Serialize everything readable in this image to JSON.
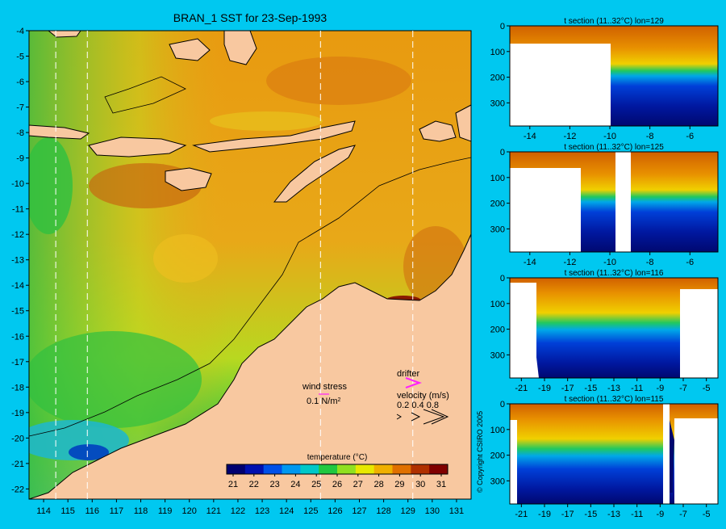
{
  "title": "BRAN_1 SST for 23-Sep-1993",
  "copyright": "© Copyright CSIRO 2005",
  "map": {
    "lon_ticks": [
      "114",
      "115",
      "116",
      "117",
      "118",
      "119",
      "120",
      "121",
      "122",
      "123",
      "124",
      "125",
      "126",
      "127",
      "128",
      "129",
      "130",
      "131"
    ],
    "lat_ticks": [
      "-4",
      "-5",
      "-6",
      "-7",
      "-8",
      "-9",
      "-10",
      "-11",
      "-12",
      "-13",
      "-14",
      "-15",
      "-16",
      "-17",
      "-18",
      "-19",
      "-20",
      "-21",
      "-22"
    ],
    "section_lines": [
      "114.5",
      "115.8",
      "125.4",
      "129.2"
    ],
    "legend": {
      "title": "temperature (°C)",
      "ticks": [
        "21",
        "22",
        "23",
        "24",
        "25",
        "26",
        "27",
        "28",
        "29",
        "30",
        "31"
      ],
      "colors": [
        "#000070",
        "#0010b0",
        "#0050e8",
        "#0098f0",
        "#00c8c8",
        "#20c840",
        "#90e020",
        "#e8e800",
        "#f0b000",
        "#e07000",
        "#b03000",
        "#800000"
      ]
    },
    "wind_stress_label": "wind stress",
    "wind_stress_value": "0.1 N/m",
    "wind_stress_exp": "2",
    "drifter_label": "drifter",
    "velocity_label": "velocity (m/s)",
    "velocity_values": "0.2 0.4 0.8"
  },
  "sections": [
    {
      "title": "t section (11..32°C) lon=129",
      "x_ticks": [
        "-14",
        "-12",
        "-10",
        "-8",
        "-6"
      ],
      "y_ticks": [
        "0",
        "100",
        "200",
        "300"
      ]
    },
    {
      "title": "t section (11..32°C) lon=125",
      "x_ticks": [
        "-14",
        "-12",
        "-10",
        "-8",
        "-6"
      ],
      "y_ticks": [
        "0",
        "100",
        "200",
        "300"
      ]
    },
    {
      "title": "t section (11..32°C) lon=116",
      "x_ticks": [
        "-21",
        "-19",
        "-17",
        "-15",
        "-13",
        "-11",
        "-9",
        "-7",
        "-5"
      ],
      "y_ticks": [
        "0",
        "100",
        "200",
        "300"
      ]
    },
    {
      "title": "t section (11..32°C) lon=115",
      "x_ticks": [
        "-21",
        "-19",
        "-17",
        "-15",
        "-13",
        "-11",
        "-9",
        "-7",
        "-5"
      ],
      "y_ticks": [
        "0",
        "100",
        "200",
        "300"
      ]
    }
  ]
}
